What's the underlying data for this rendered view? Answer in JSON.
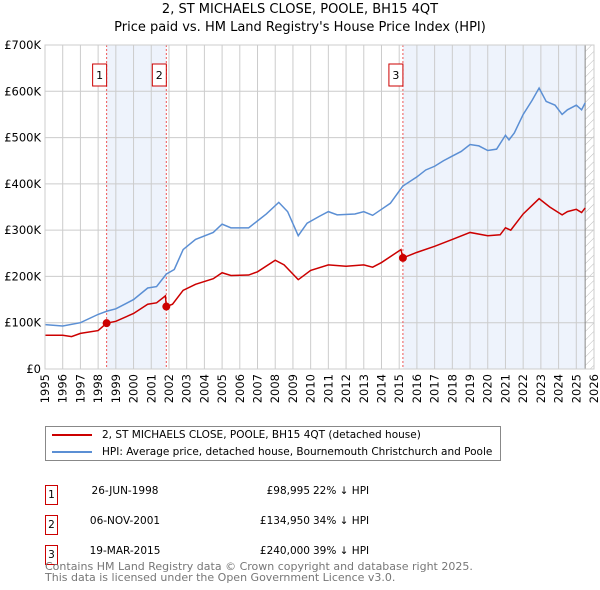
{
  "chart_data": {
    "type": "line",
    "title": "2, ST MICHAELS CLOSE, POOLE, BH15 4QT",
    "subtitle": "Price paid vs. HM Land Registry's House Price Index (HPI)",
    "xlim": [
      1995,
      2026
    ],
    "ylim": [
      0,
      700000
    ],
    "y_ticks": [
      {
        "v": 0,
        "label": "£0"
      },
      {
        "v": 100000,
        "label": "£100K"
      },
      {
        "v": 200000,
        "label": "£200K"
      },
      {
        "v": 300000,
        "label": "£300K"
      },
      {
        "v": 400000,
        "label": "£400K"
      },
      {
        "v": 500000,
        "label": "£500K"
      },
      {
        "v": 600000,
        "label": "£600K"
      },
      {
        "v": 700000,
        "label": "£700K"
      }
    ],
    "x_ticks": [
      "1995",
      "1996",
      "1997",
      "1998",
      "1999",
      "2000",
      "2001",
      "2002",
      "2003",
      "2004",
      "2005",
      "2006",
      "2007",
      "2008",
      "2009",
      "2010",
      "2011",
      "2012",
      "2013",
      "2014",
      "2015",
      "2016",
      "2017",
      "2018",
      "2019",
      "2020",
      "2021",
      "2022",
      "2023",
      "2024",
      "2025",
      "2026"
    ],
    "grid": true,
    "forecast_from": 2025.5,
    "series": [
      {
        "name": "2, ST MICHAELS CLOSE, POOLE, BH15 4QT (detached house)",
        "color": "#cc0000",
        "points": [
          [
            1995,
            73
          ],
          [
            1996,
            73
          ],
          [
            1996.5,
            70
          ],
          [
            1997,
            77
          ],
          [
            1998,
            83
          ],
          [
            1998.48,
            99
          ],
          [
            1999,
            103
          ],
          [
            2000,
            120
          ],
          [
            2000.8,
            140
          ],
          [
            2001.3,
            143
          ],
          [
            2001.8,
            158
          ],
          [
            2001.85,
            135
          ],
          [
            2002.2,
            140
          ],
          [
            2002.8,
            170
          ],
          [
            2003.5,
            183
          ],
          [
            2004.5,
            195
          ],
          [
            2005,
            208
          ],
          [
            2005.5,
            202
          ],
          [
            2006.5,
            203
          ],
          [
            2007,
            210
          ],
          [
            2008,
            235
          ],
          [
            2008.5,
            225
          ],
          [
            2009.3,
            193
          ],
          [
            2010,
            213
          ],
          [
            2011,
            225
          ],
          [
            2012,
            222
          ],
          [
            2013,
            225
          ],
          [
            2013.5,
            220
          ],
          [
            2014,
            230
          ],
          [
            2015.1,
            258
          ],
          [
            2015.21,
            240
          ],
          [
            2016,
            252
          ],
          [
            2017,
            265
          ],
          [
            2018,
            280
          ],
          [
            2019,
            295
          ],
          [
            2020,
            288
          ],
          [
            2020.7,
            290
          ],
          [
            2021,
            305
          ],
          [
            2021.3,
            300
          ],
          [
            2022,
            335
          ],
          [
            2022.9,
            368
          ],
          [
            2023.5,
            350
          ],
          [
            2024.2,
            333
          ],
          [
            2024.5,
            340
          ],
          [
            2025,
            345
          ],
          [
            2025.3,
            338
          ],
          [
            2025.5,
            348
          ]
        ]
      },
      {
        "name": "HPI: Average price, detached house, Bournemouth Christchurch and Poole",
        "color": "#5b8fd4",
        "points": [
          [
            1995,
            96
          ],
          [
            1996,
            93
          ],
          [
            1997,
            100
          ],
          [
            1998,
            118
          ],
          [
            1998.5,
            125
          ],
          [
            1999,
            130
          ],
          [
            2000,
            150
          ],
          [
            2000.8,
            175
          ],
          [
            2001.3,
            178
          ],
          [
            2001.85,
            205
          ],
          [
            2002.3,
            215
          ],
          [
            2002.8,
            258
          ],
          [
            2003.5,
            280
          ],
          [
            2004.5,
            295
          ],
          [
            2005,
            313
          ],
          [
            2005.5,
            305
          ],
          [
            2006.5,
            305
          ],
          [
            2007,
            320
          ],
          [
            2007.5,
            335
          ],
          [
            2008.2,
            360
          ],
          [
            2008.7,
            340
          ],
          [
            2009.3,
            288
          ],
          [
            2009.8,
            315
          ],
          [
            2010.5,
            330
          ],
          [
            2011,
            340
          ],
          [
            2011.5,
            333
          ],
          [
            2012.5,
            335
          ],
          [
            2013,
            340
          ],
          [
            2013.5,
            332
          ],
          [
            2014,
            345
          ],
          [
            2014.5,
            358
          ],
          [
            2015.2,
            395
          ],
          [
            2016,
            415
          ],
          [
            2016.5,
            430
          ],
          [
            2017,
            438
          ],
          [
            2017.5,
            450
          ],
          [
            2018,
            460
          ],
          [
            2018.5,
            470
          ],
          [
            2019,
            485
          ],
          [
            2019.5,
            482
          ],
          [
            2020,
            472
          ],
          [
            2020.5,
            475
          ],
          [
            2021,
            505
          ],
          [
            2021.2,
            495
          ],
          [
            2021.5,
            510
          ],
          [
            2022,
            550
          ],
          [
            2022.5,
            580
          ],
          [
            2022.9,
            607
          ],
          [
            2023.3,
            578
          ],
          [
            2023.8,
            570
          ],
          [
            2024.2,
            550
          ],
          [
            2024.5,
            560
          ],
          [
            2025,
            570
          ],
          [
            2025.3,
            560
          ],
          [
            2025.5,
            575
          ]
        ]
      }
    ],
    "y_unit_multiplier": 1000,
    "annotations": [
      {
        "label": "1",
        "x": 1998.48,
        "price": 98995
      },
      {
        "label": "2",
        "x": 2001.85,
        "price": 134950
      },
      {
        "label": "3",
        "x": 2015.21,
        "price": 240000
      }
    ]
  },
  "transactions": [
    {
      "num": "1",
      "date": "26-JUN-1998",
      "price": "£98,995",
      "hpi": "22% ↓ HPI"
    },
    {
      "num": "2",
      "date": "06-NOV-2001",
      "price": "£134,950",
      "hpi": "34% ↓ HPI"
    },
    {
      "num": "3",
      "date": "19-MAR-2015",
      "price": "£240,000",
      "hpi": "39% ↓ HPI"
    }
  ],
  "footer": {
    "line1": "Contains HM Land Registry data © Crown copyright and database right 2025.",
    "line2": "This data is licensed under the Open Government Licence v3.0."
  }
}
